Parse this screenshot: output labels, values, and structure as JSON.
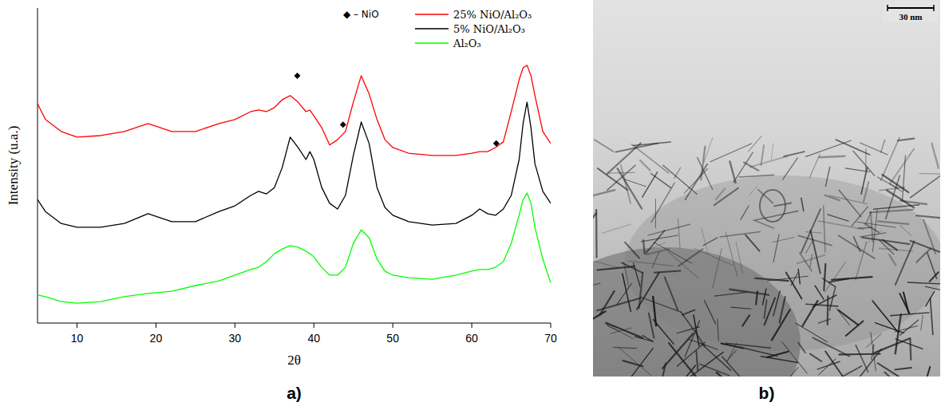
{
  "chart_data": {
    "type": "line",
    "panel_label": "a)",
    "x_label": "2θ",
    "y_label": "Intensity (u.a.)",
    "xlim": [
      5,
      70
    ],
    "xticks": [
      10,
      20,
      30,
      40,
      50,
      60,
      70
    ],
    "ylim": [
      0,
      100
    ],
    "tick_labels": "x",
    "legend": "upper right",
    "x": [
      5,
      6,
      8,
      10,
      13,
      16,
      19,
      22,
      25,
      28,
      30,
      32,
      33,
      34,
      35,
      36,
      37,
      38,
      39,
      39.5,
      40,
      41,
      42,
      43,
      44,
      45,
      46,
      47,
      48,
      49,
      50,
      52,
      55,
      58,
      60,
      61,
      62,
      63,
      64,
      65,
      66,
      66.5,
      67,
      67.5,
      68,
      69,
      70
    ],
    "series": [
      {
        "name": "25% NiO/Al₂O₃",
        "color": "#ff0000",
        "values": [
          69.6,
          64.6,
          60.8,
          59.0,
          59.5,
          60.8,
          63.3,
          60.8,
          60.8,
          63.3,
          64.6,
          67.1,
          67.6,
          67.1,
          68.4,
          70.9,
          72.2,
          70.1,
          67.1,
          67.6,
          65.8,
          62.0,
          56.5,
          58.2,
          60.8,
          70.1,
          78.5,
          72.7,
          64.6,
          58.2,
          55.7,
          53.9,
          53.2,
          53.2,
          53.9,
          54.4,
          54.4,
          55.7,
          57.5,
          67.1,
          77.2,
          81.0,
          81.8,
          78.5,
          72.2,
          60.8,
          57.0
        ]
      },
      {
        "name": "5% NiO/Al₂O₃",
        "color": "#000000",
        "values": [
          39.2,
          35.4,
          31.6,
          30.4,
          30.4,
          31.6,
          34.7,
          32.2,
          32.2,
          35.4,
          37.2,
          40.5,
          41.8,
          41.0,
          43.0,
          49.4,
          59.0,
          55.7,
          51.9,
          54.4,
          51.9,
          43.0,
          38.0,
          36.2,
          40.5,
          53.2,
          63.8,
          57.0,
          43.0,
          36.7,
          34.2,
          32.2,
          31.1,
          31.6,
          34.2,
          36.2,
          34.7,
          34.2,
          36.2,
          40.5,
          51.9,
          63.3,
          70.1,
          62.0,
          50.6,
          41.8,
          38.0
        ]
      },
      {
        "name": "Al₂O₃",
        "color": "#00ff00",
        "values": [
          8.9,
          8.4,
          6.8,
          6.3,
          6.8,
          8.4,
          9.4,
          10.1,
          11.9,
          13.4,
          15.2,
          17.0,
          17.7,
          19.5,
          22.0,
          23.5,
          24.6,
          24.1,
          22.8,
          22.0,
          21.0,
          17.7,
          15.2,
          15.2,
          17.7,
          25.3,
          29.6,
          27.1,
          20.3,
          16.5,
          15.2,
          14.4,
          13.9,
          15.2,
          16.5,
          17.0,
          17.0,
          17.7,
          19.5,
          25.3,
          34.2,
          39.2,
          41.3,
          38.0,
          30.4,
          20.3,
          12.7
        ]
      }
    ],
    "peaks": {
      "name": "NiO",
      "label": "◆ – NiO",
      "marker": "diamond",
      "color": "#000000",
      "x": [
        37.9,
        43.7,
        63.1
      ],
      "y": [
        78.5,
        63.0,
        57.0
      ]
    }
  },
  "image_panel": {
    "panel_label": "b)",
    "scale_bar_label": "30 nm"
  }
}
